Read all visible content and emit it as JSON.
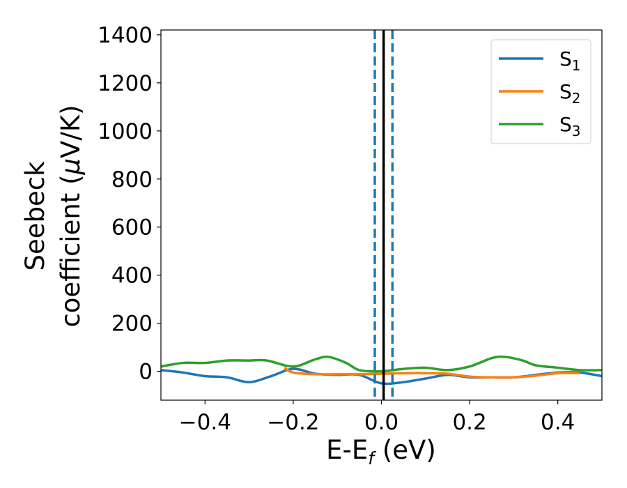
{
  "chart_data": {
    "type": "line",
    "xlabel": "E-E_f (eV)",
    "ylabel": "Seebeck\ncoefficient  (μV/K)",
    "xlim": [
      -0.5,
      0.5
    ],
    "ylim": [
      -120,
      1420
    ],
    "xticks": [
      -0.4,
      -0.2,
      0.0,
      0.2,
      0.4
    ],
    "xtick_labels": [
      "−0.4",
      "−0.2",
      "0.0",
      "0.2",
      "0.4"
    ],
    "yticks": [
      0,
      200,
      400,
      600,
      800,
      1000,
      1200,
      1400
    ],
    "ytick_labels": [
      "0",
      "200",
      "400",
      "600",
      "800",
      "1000",
      "1200",
      "1400"
    ],
    "legend_position": "top-right",
    "series": [
      {
        "name": "S1",
        "color": "#1f77b4",
        "x": [
          -0.5,
          -0.45,
          -0.4,
          -0.35,
          -0.3,
          -0.25,
          -0.2,
          -0.15,
          -0.1,
          -0.05,
          0.0,
          0.05,
          0.1,
          0.15,
          0.2,
          0.25,
          0.3,
          0.35,
          0.4,
          0.45,
          0.5
        ],
        "y": [
          5,
          -5,
          -20,
          -25,
          -45,
          -20,
          10,
          -10,
          -15,
          -15,
          -50,
          -45,
          -30,
          -15,
          -25,
          -25,
          -25,
          -15,
          -5,
          -5,
          -20
        ]
      },
      {
        "name": "S2",
        "color": "#ff7f0e",
        "x": [
          -0.22,
          -0.2,
          -0.15,
          -0.1,
          -0.05,
          0.0,
          0.05,
          0.1,
          0.15,
          0.2,
          0.25,
          0.3,
          0.35,
          0.4,
          0.45
        ],
        "y": [
          15,
          -5,
          -12,
          -12,
          -12,
          -10,
          -8,
          -8,
          -10,
          -22,
          -25,
          -25,
          -18,
          -8,
          -8
        ]
      },
      {
        "name": "S3",
        "color": "#2ca02c",
        "x": [
          -0.5,
          -0.45,
          -0.4,
          -0.35,
          -0.3,
          -0.26,
          -0.2,
          -0.15,
          -0.12,
          -0.08,
          -0.05,
          0.0,
          0.05,
          0.1,
          0.15,
          0.2,
          0.25,
          0.28,
          0.32,
          0.35,
          0.4,
          0.45,
          0.5
        ],
        "y": [
          20,
          35,
          35,
          45,
          45,
          45,
          20,
          50,
          60,
          35,
          5,
          0,
          10,
          15,
          5,
          20,
          55,
          60,
          45,
          25,
          15,
          5,
          5
        ]
      }
    ],
    "vertical_lines": [
      {
        "x": -0.015,
        "style": "dashed",
        "color": "#1f77b4"
      },
      {
        "x": 0.025,
        "style": "dashed",
        "color": "#1f77b4"
      },
      {
        "x": 0.005,
        "style": "solid",
        "color": "#000000"
      }
    ]
  },
  "legend": [
    {
      "base": "S",
      "sub": "1",
      "color": "#1f77b4"
    },
    {
      "base": "S",
      "sub": "2",
      "color": "#ff7f0e"
    },
    {
      "base": "S",
      "sub": "3",
      "color": "#2ca02c"
    }
  ],
  "axis_titles": {
    "x_main": "E-E",
    "x_sub": "f",
    "x_unit": " (eV)",
    "y_line1": "Seebeck",
    "y_line2_prefix": "coefficient  (",
    "y_line2_mu": "μ",
    "y_line2_suffix": "V/K)"
  }
}
